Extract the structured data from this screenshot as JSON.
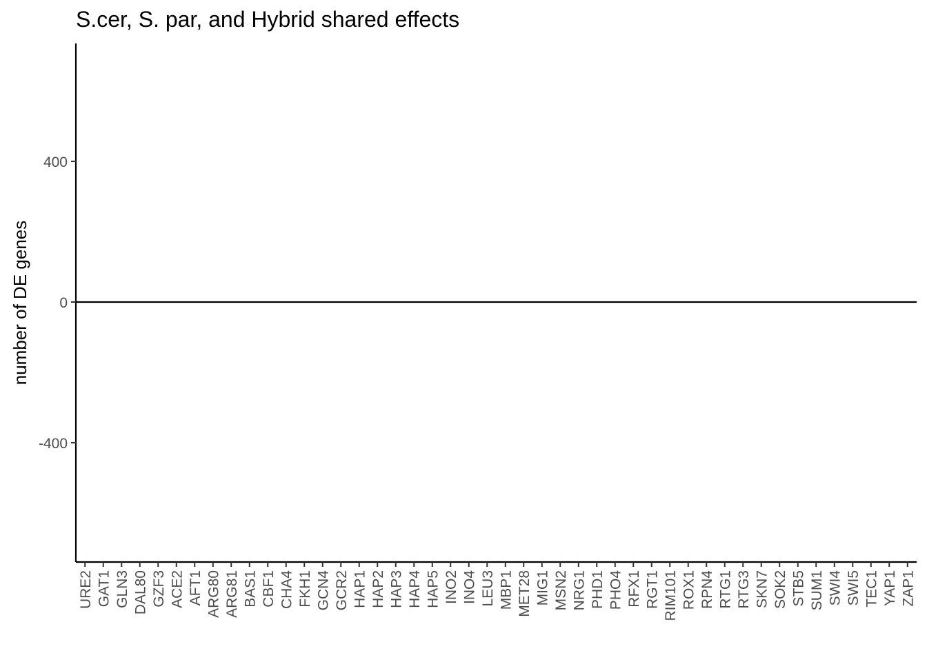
{
  "chart_data": {
    "type": "bar",
    "title": "S.cer, S. par, and Hybrid shared effects",
    "xlabel": "",
    "ylabel": "number of DE genes",
    "ylim": [
      -740,
      740
    ],
    "yticks": [
      400,
      0,
      -400
    ],
    "ytick_labels": [
      "400",
      "0",
      "-400"
    ],
    "grid": false,
    "legend": "none",
    "reference_line_y": 0,
    "categories": [
      "URE2",
      "GAT1",
      "GLN3",
      "DAL80",
      "GZF3",
      "ACE2",
      "AFT1",
      "ARG80",
      "ARG81",
      "BAS1",
      "CBF1",
      "CHA4",
      "FKH1",
      "GCN4",
      "GCR2",
      "HAP1",
      "HAP2",
      "HAP3",
      "HAP4",
      "HAP5",
      "INO2",
      "INO4",
      "LEU3",
      "MBP1",
      "MET28",
      "MIG1",
      "MSN2",
      "NRG1",
      "PHD1",
      "PHO4",
      "RFX1",
      "RGT1",
      "RIM101",
      "ROX1",
      "RPN4",
      "RTG1",
      "RTG3",
      "SKN7",
      "SOK2",
      "STB5",
      "SUM1",
      "SWI4",
      "SWI5",
      "TEC1",
      "YAP1",
      "ZAP1"
    ],
    "values": [
      0,
      0,
      0,
      0,
      0,
      0,
      0,
      0,
      0,
      0,
      0,
      0,
      0,
      0,
      0,
      0,
      0,
      0,
      0,
      0,
      0,
      0,
      0,
      0,
      0,
      0,
      0,
      0,
      0,
      0,
      0,
      0,
      0,
      0,
      0,
      0,
      0,
      0,
      0,
      0,
      0,
      0,
      0,
      0,
      0,
      0
    ],
    "colors": {
      "axis": "#000000",
      "tick_text": "#4d4d4d",
      "background": "#ffffff"
    }
  }
}
